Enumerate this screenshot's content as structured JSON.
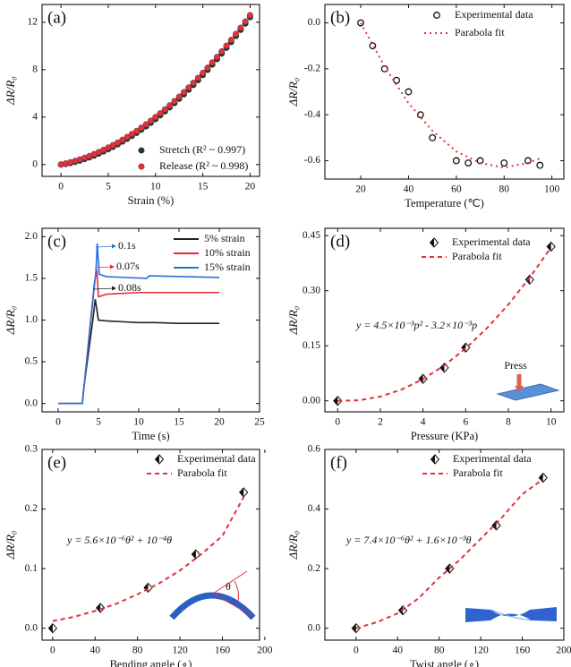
{
  "chart_data": [
    {
      "type": "scatter",
      "title": "(a)",
      "x_label": "Strain (%)",
      "y_label": "ΔR/R₀",
      "xlim": [
        -2,
        21
      ],
      "xticks": [
        0,
        5,
        10,
        15,
        20
      ],
      "ylim": [
        -1,
        13.5
      ],
      "yticks": [
        0,
        4,
        8,
        12
      ],
      "legend": "lower right",
      "x": [
        0,
        0.5,
        1,
        1.5,
        2,
        2.5,
        3,
        3.5,
        4,
        4.5,
        5,
        5.5,
        6,
        6.5,
        7,
        7.5,
        8,
        8.5,
        9,
        9.5,
        10,
        10.5,
        11,
        11.5,
        12,
        12.5,
        13,
        13.5,
        14,
        14.5,
        15,
        15.5,
        16,
        16.5,
        17,
        17.5,
        18,
        18.5,
        19,
        19.5,
        20
      ],
      "series": [
        {
          "name": "Stretch  (R² ~ 0.997)",
          "color": "#1e3d2c",
          "marker": "filled-circle",
          "values": [
            0,
            0.04,
            0.12,
            0.22,
            0.33,
            0.46,
            0.6,
            0.75,
            0.92,
            1.1,
            1.29,
            1.49,
            1.7,
            1.93,
            2.17,
            2.41,
            2.67,
            2.94,
            3.22,
            3.52,
            3.83,
            4.15,
            4.48,
            4.82,
            5.18,
            5.55,
            5.92,
            6.31,
            6.71,
            7.12,
            7.55,
            7.98,
            8.43,
            8.89,
            9.36,
            9.84,
            10.33,
            10.84,
            11.36,
            11.89,
            12.43
          ]
        },
        {
          "name": "Release (R² ~ 0.998)",
          "color": "#e3313c",
          "marker": "filled-circle",
          "values": [
            0,
            0.09,
            0.19,
            0.31,
            0.43,
            0.57,
            0.72,
            0.88,
            1.05,
            1.23,
            1.43,
            1.63,
            1.85,
            2.08,
            2.32,
            2.57,
            2.83,
            3.11,
            3.39,
            3.69,
            4.0,
            4.32,
            4.65,
            4.99,
            5.35,
            5.72,
            6.1,
            6.49,
            6.89,
            7.3,
            7.73,
            8.16,
            8.61,
            9.07,
            9.54,
            10.02,
            10.51,
            11.02,
            11.53,
            12.06,
            12.6
          ]
        }
      ]
    },
    {
      "type": "scatter",
      "title": "(b)",
      "x_label": "Temperature (℃)",
      "y_label": "ΔR/R₀",
      "xlim": [
        5,
        105
      ],
      "xticks": [
        20,
        40,
        60,
        80,
        100
      ],
      "ylim": [
        -0.68,
        0.08
      ],
      "yticks": [
        {
          "value": 0,
          "label": "0.0"
        },
        -0.2,
        -0.4,
        -0.6
      ],
      "legend": "upper right",
      "series": [
        {
          "name": "Experimental data",
          "color": "#111111",
          "marker": "open-circle",
          "x": [
            20,
            25,
            30,
            35,
            40,
            45,
            50,
            60,
            65,
            70,
            80,
            90,
            95
          ],
          "values": [
            0,
            -0.1,
            -0.2,
            -0.25,
            -0.3,
            -0.4,
            -0.5,
            -0.6,
            -0.61,
            -0.6,
            -0.61,
            -0.6,
            -0.62
          ]
        },
        {
          "name": "Parabola fit",
          "color": "#e3313c",
          "marker": "dotted-line",
          "x": [
            20,
            30,
            40,
            50,
            60,
            70,
            80,
            90,
            95
          ],
          "values": [
            0,
            -0.19,
            -0.35,
            -0.47,
            -0.56,
            -0.61,
            -0.63,
            -0.61,
            -0.59
          ]
        }
      ]
    },
    {
      "type": "line",
      "title": "(c)",
      "x_label": "Time (s)",
      "y_label": "ΔR/R₀",
      "xlim": [
        -2,
        25
      ],
      "xticks": [
        0,
        5,
        10,
        15,
        20,
        25
      ],
      "ylim": [
        -0.1,
        2.1
      ],
      "yticks": [
        {
          "value": 0,
          "label": "0.0"
        },
        0.5,
        {
          "value": 1,
          "label": "1.0"
        },
        1.5,
        {
          "value": 2,
          "label": "2.0"
        }
      ],
      "legend": "upper right",
      "annotations": [
        "0.1s",
        "0.07s",
        "0.08s"
      ],
      "series": [
        {
          "name": "5%   strain",
          "color": "#222222",
          "marker": "line",
          "x": [
            0,
            3,
            3.2,
            4.3,
            4.6,
            5,
            6,
            8,
            10,
            12,
            15,
            20
          ],
          "values": [
            0,
            0,
            0.2,
            1.0,
            1.25,
            1.0,
            0.99,
            0.98,
            0.97,
            0.97,
            0.96,
            0.96
          ]
        },
        {
          "name": "10% strain",
          "color": "#e8293a",
          "marker": "line",
          "x": [
            0,
            3,
            4.5,
            4.8,
            5,
            6,
            10,
            15,
            20
          ],
          "values": [
            0,
            0,
            1.45,
            1.6,
            1.28,
            1.31,
            1.33,
            1.33,
            1.33
          ]
        },
        {
          "name": "15% strain",
          "color": "#2a6fd6",
          "marker": "line",
          "x": [
            0,
            3,
            4.7,
            4.85,
            5.1,
            6,
            11,
            11.3,
            20
          ],
          "values": [
            0,
            0,
            1.6,
            1.92,
            1.55,
            1.52,
            1.5,
            1.53,
            1.51
          ]
        }
      ]
    },
    {
      "type": "scatter",
      "title": "(d)",
      "x_label": "Pressure (KPa)",
      "y_label": "ΔR/R₀",
      "xlim": [
        -0.6,
        10.6
      ],
      "xticks": [
        0,
        2,
        4,
        6,
        8,
        10
      ],
      "ylim": [
        -0.03,
        0.47
      ],
      "yticks": [
        {
          "value": 0,
          "label": "0.00"
        },
        0.15,
        {
          "value": 0.3,
          "label": "0.30"
        },
        0.45
      ],
      "legend": "upper right",
      "annotations": [
        "y = 4.5×10⁻³p² - 3.2×10⁻³p",
        "Press"
      ],
      "series": [
        {
          "name": "Experimental data",
          "color": "#111111",
          "marker": "half-diamond",
          "x": [
            0,
            4,
            5,
            6,
            9,
            10
          ],
          "values": [
            0,
            0.06,
            0.09,
            0.145,
            0.33,
            0.42
          ]
        },
        {
          "name": "Parabola fit",
          "color": "#e3313c",
          "marker": "dashed-line",
          "x": [
            0,
            1,
            2,
            3,
            4,
            5,
            6,
            7,
            8,
            9,
            10
          ],
          "values": [
            0,
            0.0013,
            0.0116,
            0.0309,
            0.0592,
            0.0965,
            0.1428,
            0.1981,
            0.2624,
            0.3357,
            0.418
          ]
        }
      ]
    },
    {
      "type": "scatter",
      "title": "(e)",
      "x_label": "Bending angle (∘)",
      "y_label": "ΔR/R₀",
      "xlim": [
        -10,
        195
      ],
      "xticks": [
        0,
        40,
        80,
        120,
        160,
        200
      ],
      "ylim": [
        -0.02,
        0.3
      ],
      "yticks": [
        {
          "value": 0,
          "label": "0.0"
        },
        0.1,
        0.2,
        0.3
      ],
      "legend": "upper right",
      "annotations": [
        "y = 5.6×10⁻⁶θ² + 10⁻⁴θ",
        "θ"
      ],
      "series": [
        {
          "name": "Experimental data",
          "color": "#111111",
          "marker": "half-diamond",
          "x": [
            0,
            45,
            90,
            135,
            180
          ],
          "values": [
            0,
            0.034,
            0.068,
            0.124,
            0.228
          ]
        },
        {
          "name": "Parabola fit",
          "color": "#e3313c",
          "marker": "dashed-line",
          "x": [
            0,
            20,
            40,
            60,
            80,
            100,
            120,
            140,
            160,
            180
          ],
          "values": [
            0.012,
            0.019,
            0.029,
            0.041,
            0.057,
            0.075,
            0.097,
            0.124,
            0.155,
            0.22
          ]
        }
      ]
    },
    {
      "type": "scatter",
      "title": "(f)",
      "x_label": "Twist angle (∘)",
      "y_label": "ΔR/R₀",
      "xlim": [
        -30,
        200
      ],
      "xticks": [
        0,
        40,
        80,
        120,
        160,
        200
      ],
      "ylim": [
        -0.04,
        0.6
      ],
      "yticks": [
        {
          "value": 0,
          "label": "0.0"
        },
        0.2,
        0.4,
        0.6
      ],
      "legend": "upper right",
      "annotations": [
        "y = 7.4×10⁻⁶θ² + 1.6×10⁻³θ"
      ],
      "series": [
        {
          "name": "Experimental data",
          "color": "#111111",
          "marker": "half-diamond",
          "x": [
            0,
            45,
            90,
            135,
            180
          ],
          "values": [
            0,
            0.06,
            0.2,
            0.345,
            0.505
          ]
        },
        {
          "name": "Parabola fit",
          "color": "#e3313c",
          "marker": "dashed-line",
          "x": [
            0,
            20,
            40,
            60,
            80,
            100,
            120,
            140,
            160,
            180
          ],
          "values": [
            0,
            0.02,
            0.05,
            0.1,
            0.17,
            0.23,
            0.3,
            0.37,
            0.45,
            0.5
          ]
        }
      ]
    }
  ]
}
